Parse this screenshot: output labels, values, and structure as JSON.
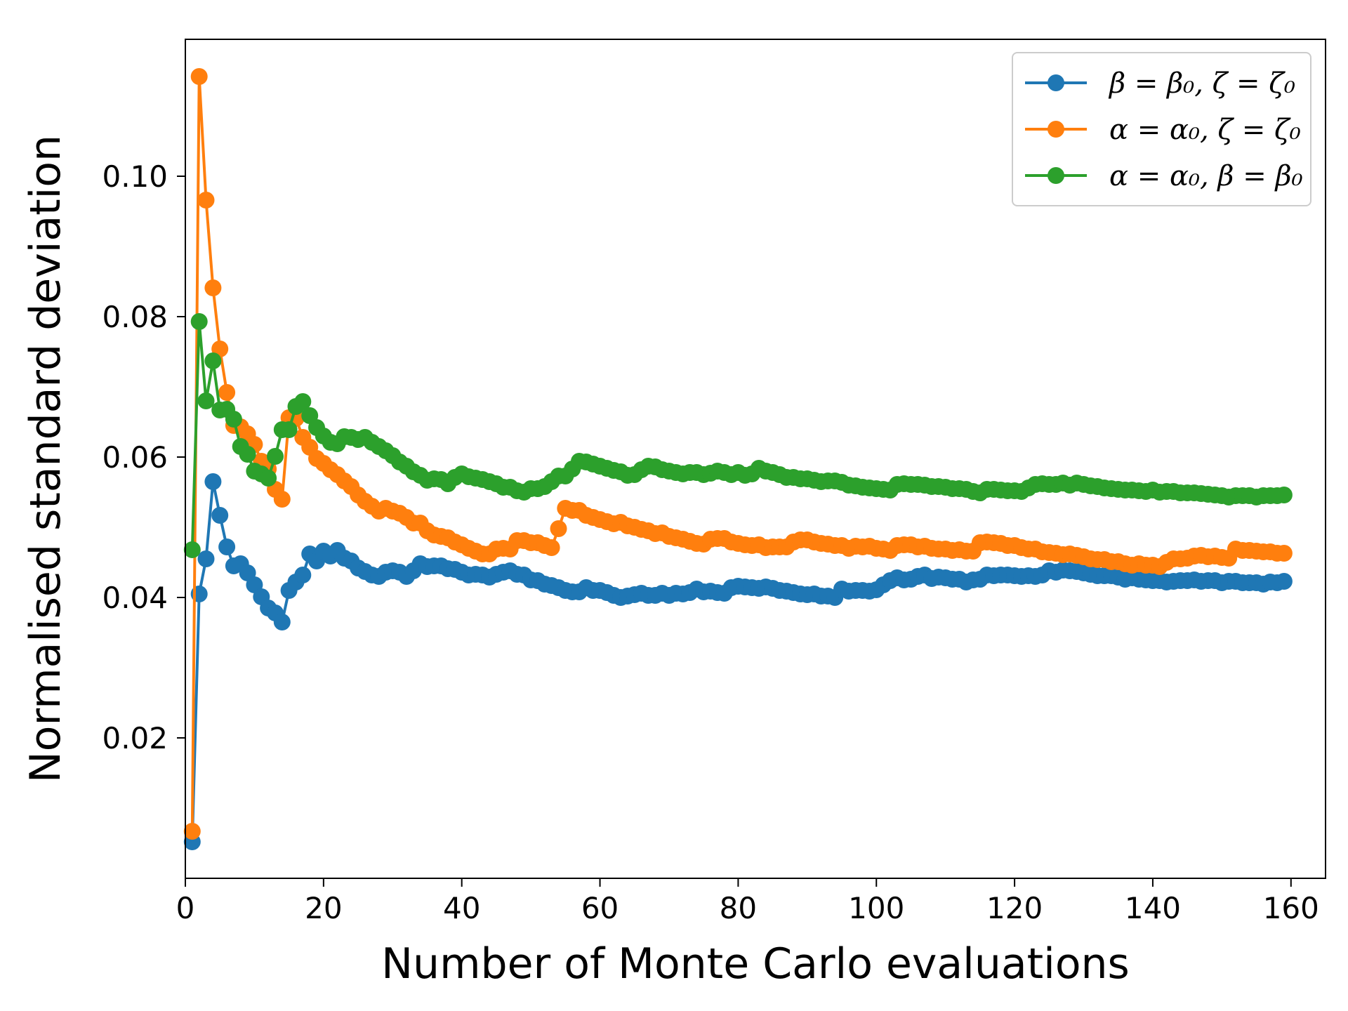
{
  "chart_data": {
    "type": "line",
    "xlabel": "Number of Monte Carlo evaluations",
    "ylabel": "Normalised standard deviation",
    "xlim": [
      0,
      165
    ],
    "ylim": [
      0.0,
      0.1195
    ],
    "xticks": [
      0,
      20,
      40,
      60,
      80,
      100,
      120,
      140,
      160
    ],
    "xtick_labels": [
      "0",
      "20",
      "40",
      "60",
      "80",
      "100",
      "120",
      "140",
      "160"
    ],
    "yticks": [
      0.02,
      0.04,
      0.06,
      0.08,
      0.1
    ],
    "ytick_labels": [
      "0.02",
      "0.04",
      "0.06",
      "0.08",
      "0.10"
    ],
    "grid": false,
    "legend_position": "top-right",
    "x": [
      1,
      2,
      3,
      4,
      5,
      6,
      7,
      8,
      9,
      10,
      11,
      12,
      13,
      14,
      15,
      16,
      17,
      18,
      19,
      20,
      21,
      22,
      23,
      24,
      25,
      26,
      27,
      28,
      29,
      30,
      31,
      32,
      33,
      34,
      35,
      36,
      37,
      38,
      39,
      40,
      41,
      42,
      43,
      44,
      45,
      46,
      47,
      48,
      49,
      50,
      51,
      52,
      53,
      54,
      55,
      56,
      57,
      58,
      59,
      60,
      61,
      62,
      63,
      64,
      65,
      66,
      67,
      68,
      69,
      70,
      71,
      72,
      73,
      74,
      75,
      76,
      77,
      78,
      79,
      80,
      81,
      82,
      83,
      84,
      85,
      86,
      87,
      88,
      89,
      90,
      91,
      92,
      93,
      94,
      95,
      96,
      97,
      98,
      99,
      100,
      101,
      102,
      103,
      104,
      105,
      106,
      107,
      108,
      109,
      110,
      111,
      112,
      113,
      114,
      115,
      116,
      117,
      118,
      119,
      120,
      121,
      122,
      123,
      124,
      125,
      126,
      127,
      128,
      129,
      130,
      131,
      132,
      133,
      134,
      135,
      136,
      137,
      138,
      139,
      140,
      141,
      142,
      143,
      144,
      145,
      146,
      147,
      148,
      149,
      150,
      151,
      152,
      153,
      154,
      155,
      156,
      157,
      158,
      159
    ],
    "series": [
      {
        "legend": "β = β₀, ζ = ζ₀",
        "color": "#1f77b4",
        "values": [
          0.0052,
          0.0405,
          0.0455,
          0.0565,
          0.0517,
          0.0472,
          0.0445,
          0.0448,
          0.0435,
          0.0418,
          0.0401,
          0.0385,
          0.0378,
          0.0365,
          0.041,
          0.0422,
          0.0432,
          0.0462,
          0.0452,
          0.0466,
          0.0459,
          0.0467,
          0.0456,
          0.0452,
          0.0442,
          0.0437,
          0.0432,
          0.043,
          0.0436,
          0.0438,
          0.0436,
          0.043,
          0.0438,
          0.0448,
          0.0444,
          0.0445,
          0.0445,
          0.0441,
          0.044,
          0.0436,
          0.0432,
          0.0433,
          0.0432,
          0.0429,
          0.0433,
          0.0436,
          0.0438,
          0.0433,
          0.0432,
          0.0425,
          0.0424,
          0.0419,
          0.0417,
          0.0414,
          0.041,
          0.0408,
          0.0408,
          0.0414,
          0.041,
          0.041,
          0.0407,
          0.0403,
          0.04,
          0.0402,
          0.0404,
          0.0406,
          0.0403,
          0.0403,
          0.0406,
          0.0403,
          0.0406,
          0.0405,
          0.0407,
          0.0412,
          0.0408,
          0.0409,
          0.0407,
          0.0406,
          0.0414,
          0.0416,
          0.0415,
          0.0414,
          0.0413,
          0.0415,
          0.0413,
          0.041,
          0.0409,
          0.0407,
          0.0405,
          0.0404,
          0.0405,
          0.0402,
          0.0402,
          0.04,
          0.0412,
          0.0409,
          0.041,
          0.041,
          0.0409,
          0.0411,
          0.0418,
          0.0424,
          0.0428,
          0.0425,
          0.0426,
          0.043,
          0.0432,
          0.0427,
          0.0429,
          0.0428,
          0.0426,
          0.0426,
          0.0422,
          0.0425,
          0.0426,
          0.0432,
          0.0431,
          0.0432,
          0.0432,
          0.0431,
          0.043,
          0.0431,
          0.043,
          0.0432,
          0.0438,
          0.0436,
          0.0439,
          0.0438,
          0.0437,
          0.0435,
          0.0433,
          0.0431,
          0.0431,
          0.0431,
          0.0429,
          0.0426,
          0.0428,
          0.0426,
          0.0425,
          0.0424,
          0.0424,
          0.0422,
          0.0423,
          0.0424,
          0.0424,
          0.0425,
          0.0423,
          0.0424,
          0.0424,
          0.0421,
          0.0423,
          0.0423,
          0.0421,
          0.0421,
          0.0421,
          0.0419,
          0.0422,
          0.0421,
          0.0423
        ]
      },
      {
        "legend": "α = α₀, ζ = ζ₀",
        "color": "#ff7f0e",
        "values": [
          0.0067,
          0.1142,
          0.0966,
          0.0841,
          0.0754,
          0.0692,
          0.0645,
          0.0643,
          0.0633,
          0.0618,
          0.0594,
          0.0583,
          0.0554,
          0.054,
          0.0656,
          0.0655,
          0.0628,
          0.0614,
          0.0598,
          0.0591,
          0.0582,
          0.0575,
          0.0566,
          0.0558,
          0.0546,
          0.0537,
          0.053,
          0.0523,
          0.0527,
          0.0523,
          0.052,
          0.0514,
          0.0506,
          0.0506,
          0.0495,
          0.0489,
          0.0487,
          0.0485,
          0.0479,
          0.0475,
          0.047,
          0.0466,
          0.0462,
          0.0462,
          0.0469,
          0.047,
          0.0469,
          0.0481,
          0.0481,
          0.0478,
          0.0478,
          0.0474,
          0.0471,
          0.0498,
          0.0527,
          0.0524,
          0.0524,
          0.0517,
          0.0514,
          0.0511,
          0.0508,
          0.0505,
          0.0507,
          0.0502,
          0.05,
          0.0497,
          0.0495,
          0.0491,
          0.0492,
          0.0487,
          0.0485,
          0.0483,
          0.048,
          0.0477,
          0.0476,
          0.0483,
          0.0484,
          0.0484,
          0.0479,
          0.0477,
          0.0475,
          0.0474,
          0.0475,
          0.0471,
          0.0472,
          0.0472,
          0.0472,
          0.0479,
          0.0482,
          0.0482,
          0.0479,
          0.0477,
          0.0476,
          0.0474,
          0.0474,
          0.047,
          0.0473,
          0.0472,
          0.0473,
          0.047,
          0.0469,
          0.0467,
          0.0474,
          0.0475,
          0.0475,
          0.0472,
          0.0473,
          0.047,
          0.0469,
          0.0469,
          0.0467,
          0.0468,
          0.0466,
          0.0466,
          0.0478,
          0.0479,
          0.0478,
          0.0477,
          0.0474,
          0.0474,
          0.0471,
          0.0469,
          0.0469,
          0.0465,
          0.0464,
          0.0463,
          0.0461,
          0.0462,
          0.046,
          0.0458,
          0.0455,
          0.0454,
          0.0454,
          0.0451,
          0.0451,
          0.0448,
          0.0446,
          0.0448,
          0.0446,
          0.0446,
          0.0444,
          0.045,
          0.0455,
          0.0455,
          0.0456,
          0.0459,
          0.046,
          0.0458,
          0.0459,
          0.0457,
          0.0456,
          0.0469,
          0.0467,
          0.0467,
          0.0466,
          0.0465,
          0.0465,
          0.0463,
          0.0463
        ]
      },
      {
        "legend": "α = α₀, β = β₀",
        "color": "#2ca02c",
        "values": [
          0.0468,
          0.0793,
          0.068,
          0.0737,
          0.0667,
          0.0668,
          0.0654,
          0.0615,
          0.0604,
          0.058,
          0.0576,
          0.057,
          0.0601,
          0.0639,
          0.0639,
          0.0672,
          0.0679,
          0.0659,
          0.0642,
          0.063,
          0.0621,
          0.0619,
          0.0629,
          0.0628,
          0.0625,
          0.0628,
          0.0621,
          0.0615,
          0.0609,
          0.0602,
          0.0593,
          0.0587,
          0.0579,
          0.0574,
          0.0567,
          0.0569,
          0.0568,
          0.0562,
          0.0571,
          0.0576,
          0.0572,
          0.057,
          0.0568,
          0.0565,
          0.0562,
          0.0557,
          0.0557,
          0.0552,
          0.055,
          0.0555,
          0.0555,
          0.0558,
          0.0565,
          0.0573,
          0.0573,
          0.0583,
          0.0594,
          0.0593,
          0.059,
          0.0587,
          0.0584,
          0.0581,
          0.0579,
          0.0574,
          0.0575,
          0.0582,
          0.0587,
          0.0586,
          0.0582,
          0.058,
          0.0578,
          0.0576,
          0.0578,
          0.0578,
          0.0575,
          0.0577,
          0.058,
          0.0578,
          0.0575,
          0.0578,
          0.0574,
          0.0576,
          0.0584,
          0.058,
          0.0578,
          0.0575,
          0.0571,
          0.0571,
          0.0569,
          0.0569,
          0.0567,
          0.0565,
          0.0566,
          0.0566,
          0.0564,
          0.056,
          0.0559,
          0.0557,
          0.0556,
          0.0555,
          0.0554,
          0.0553,
          0.0561,
          0.0562,
          0.0561,
          0.0561,
          0.056,
          0.0558,
          0.0558,
          0.0557,
          0.0555,
          0.0555,
          0.0554,
          0.0551,
          0.0549,
          0.0554,
          0.0554,
          0.0553,
          0.0552,
          0.0552,
          0.0551,
          0.0556,
          0.0561,
          0.0562,
          0.0561,
          0.0561,
          0.0563,
          0.056,
          0.0563,
          0.0561,
          0.0559,
          0.0558,
          0.0556,
          0.0555,
          0.0554,
          0.0553,
          0.0553,
          0.0552,
          0.0551,
          0.0553,
          0.055,
          0.0551,
          0.0551,
          0.0549,
          0.0549,
          0.0549,
          0.0548,
          0.0547,
          0.0546,
          0.0545,
          0.0543,
          0.0545,
          0.0545,
          0.0545,
          0.0543,
          0.0545,
          0.0545,
          0.0545,
          0.0546
        ]
      }
    ]
  }
}
